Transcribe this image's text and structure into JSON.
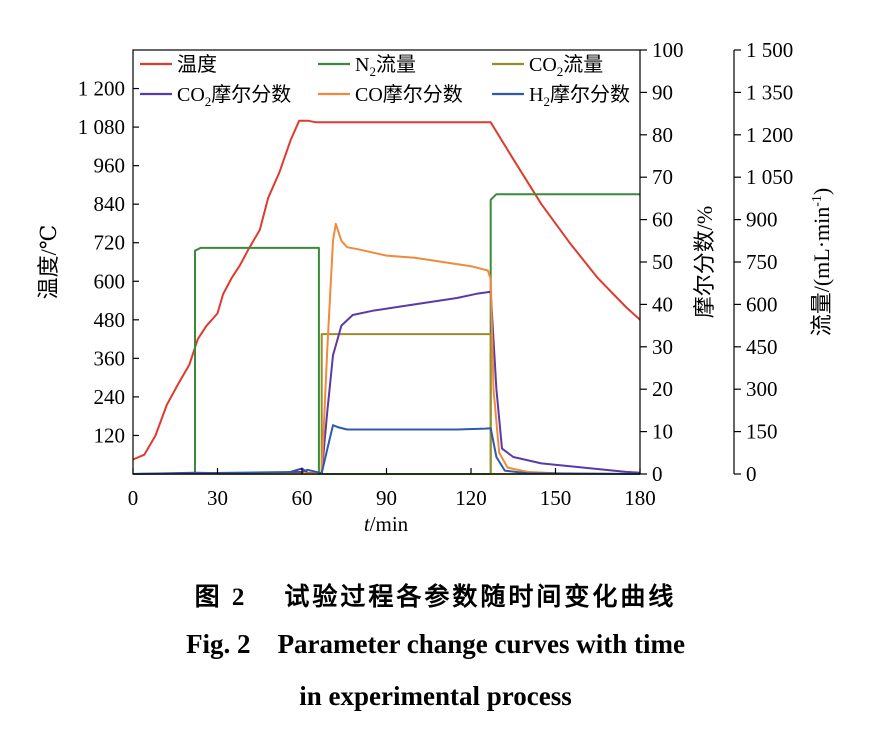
{
  "chart_data": {
    "type": "line",
    "xlabel": "t/min",
    "xlim": [
      0,
      180
    ],
    "xticks": [
      0,
      30,
      60,
      90,
      120,
      150,
      180
    ],
    "axes": {
      "temperature": {
        "label": "温度/℃",
        "lim": [
          0,
          1320
        ],
        "ticks": [
          120,
          240,
          360,
          480,
          600,
          720,
          840,
          960,
          1080,
          1200
        ],
        "tick_labels": [
          "120",
          "240",
          "360",
          "480",
          "600",
          "720",
          "840",
          "960",
          "1 080",
          "1 200"
        ]
      },
      "mole_fraction": {
        "label": "摩尔分数/%",
        "lim": [
          0,
          100
        ],
        "ticks": [
          0,
          10,
          20,
          30,
          40,
          50,
          60,
          70,
          80,
          90,
          100
        ],
        "tick_labels": [
          "0",
          "10",
          "20",
          "30",
          "40",
          "50",
          "60",
          "70",
          "80",
          "90",
          "100"
        ]
      },
      "flow": {
        "label": "流量/(mL·min",
        "label_sup": "-1",
        "label_end": ")",
        "lim": [
          0,
          1500
        ],
        "ticks": [
          0,
          150,
          300,
          450,
          600,
          750,
          900,
          1050,
          1200,
          1350,
          1500
        ],
        "tick_labels": [
          "0",
          "150",
          "300",
          "450",
          "600",
          "750",
          "900",
          "1 050",
          "1 200",
          "1 350",
          "1 500"
        ]
      }
    },
    "series": [
      {
        "name": "温度",
        "axis": "temperature",
        "color": "#e03a2f",
        "x": [
          0,
          4,
          8,
          12,
          16,
          20,
          23,
          26,
          30,
          32,
          35,
          38,
          41,
          45,
          48,
          52,
          56,
          59,
          62,
          65,
          70,
          90,
          110,
          127,
          135,
          145,
          155,
          165,
          175,
          180
        ],
        "y": [
          45,
          60,
          120,
          215,
          280,
          340,
          420,
          460,
          500,
          560,
          610,
          650,
          700,
          760,
          860,
          940,
          1040,
          1100,
          1100,
          1095,
          1095,
          1095,
          1095,
          1095,
          980,
          840,
          720,
          610,
          520,
          480
        ]
      },
      {
        "name": "N₂流量",
        "axis": "flow",
        "color": "#3a8a3a",
        "x": [
          0,
          22,
          22,
          24,
          66,
          66,
          127,
          127,
          129,
          180
        ],
        "y": [
          0,
          0,
          790,
          800,
          800,
          0,
          0,
          970,
          990,
          990
        ]
      },
      {
        "name": "CO₂流量",
        "axis": "flow",
        "color": "#9a8c2a",
        "x": [
          0,
          67,
          67,
          127,
          127,
          180
        ],
        "y": [
          0,
          0,
          495,
          495,
          0,
          0
        ]
      },
      {
        "name": "CO₂摩尔分数",
        "axis": "mole_fraction",
        "color": "#5a3aa6",
        "x": [
          0,
          22,
          40,
          55,
          60,
          62,
          67,
          69,
          71,
          74,
          78,
          85,
          95,
          105,
          115,
          122,
          127,
          129,
          131,
          135,
          145,
          160,
          175,
          180
        ],
        "y": [
          0,
          0.3,
          0.1,
          0.3,
          1.3,
          0.3,
          0.2,
          15,
          28,
          35,
          37.5,
          38.5,
          39.5,
          40.5,
          41.5,
          42.5,
          43,
          20,
          6,
          4,
          2.5,
          1.5,
          0.5,
          0.3
        ]
      },
      {
        "name": "CO摩尔分数",
        "axis": "mole_fraction",
        "color": "#f08a3c",
        "x": [
          0,
          67,
          69,
          71,
          72,
          74,
          76,
          80,
          90,
          100,
          110,
          120,
          126,
          127,
          128,
          130,
          133,
          140,
          150,
          160,
          180
        ],
        "y": [
          0,
          0.2,
          30,
          55,
          59,
          55,
          53.5,
          53,
          51.5,
          51,
          50,
          49,
          48,
          46,
          20,
          5,
          1.5,
          0.5,
          0.2,
          0.1,
          0
        ]
      },
      {
        "name": "H₂摩尔分数",
        "axis": "mole_fraction",
        "color": "#2f5aa8",
        "x": [
          0,
          60,
          62,
          67,
          69,
          71,
          73,
          76,
          85,
          100,
          115,
          125,
          127,
          129,
          132,
          140,
          180
        ],
        "y": [
          0,
          0.5,
          1,
          0.2,
          6,
          11.5,
          11,
          10.5,
          10.5,
          10.5,
          10.5,
          10.7,
          10.8,
          4,
          0.8,
          0.2,
          0
        ]
      }
    ]
  },
  "legend": [
    {
      "name": "温度",
      "base": "温度",
      "sub": "",
      "tail": "",
      "color": "#e03a2f"
    },
    {
      "name": "N₂流量",
      "base": "N",
      "sub": "2",
      "tail": "流量",
      "color": "#3a8a3a"
    },
    {
      "name": "CO₂流量",
      "base": "CO",
      "sub": "2",
      "tail": "流量",
      "color": "#9a8c2a"
    },
    {
      "name": "CO₂摩尔分数",
      "base": "CO",
      "sub": "2",
      "tail": "摩尔分数",
      "color": "#5a3aa6"
    },
    {
      "name": "CO摩尔分数",
      "base": "CO摩尔分数",
      "sub": "",
      "tail": "",
      "color": "#f08a3c"
    },
    {
      "name": "H₂摩尔分数",
      "base": "H",
      "sub": "2",
      "tail": "摩尔分数",
      "color": "#2f5aa8"
    }
  ],
  "caption": {
    "zh_label": "图 2",
    "zh_text": "试验过程各参数随时间变化曲线",
    "en_label": "Fig. 2",
    "en_text_line1": "Parameter change curves with time",
    "en_text_line2": "in experimental process"
  }
}
